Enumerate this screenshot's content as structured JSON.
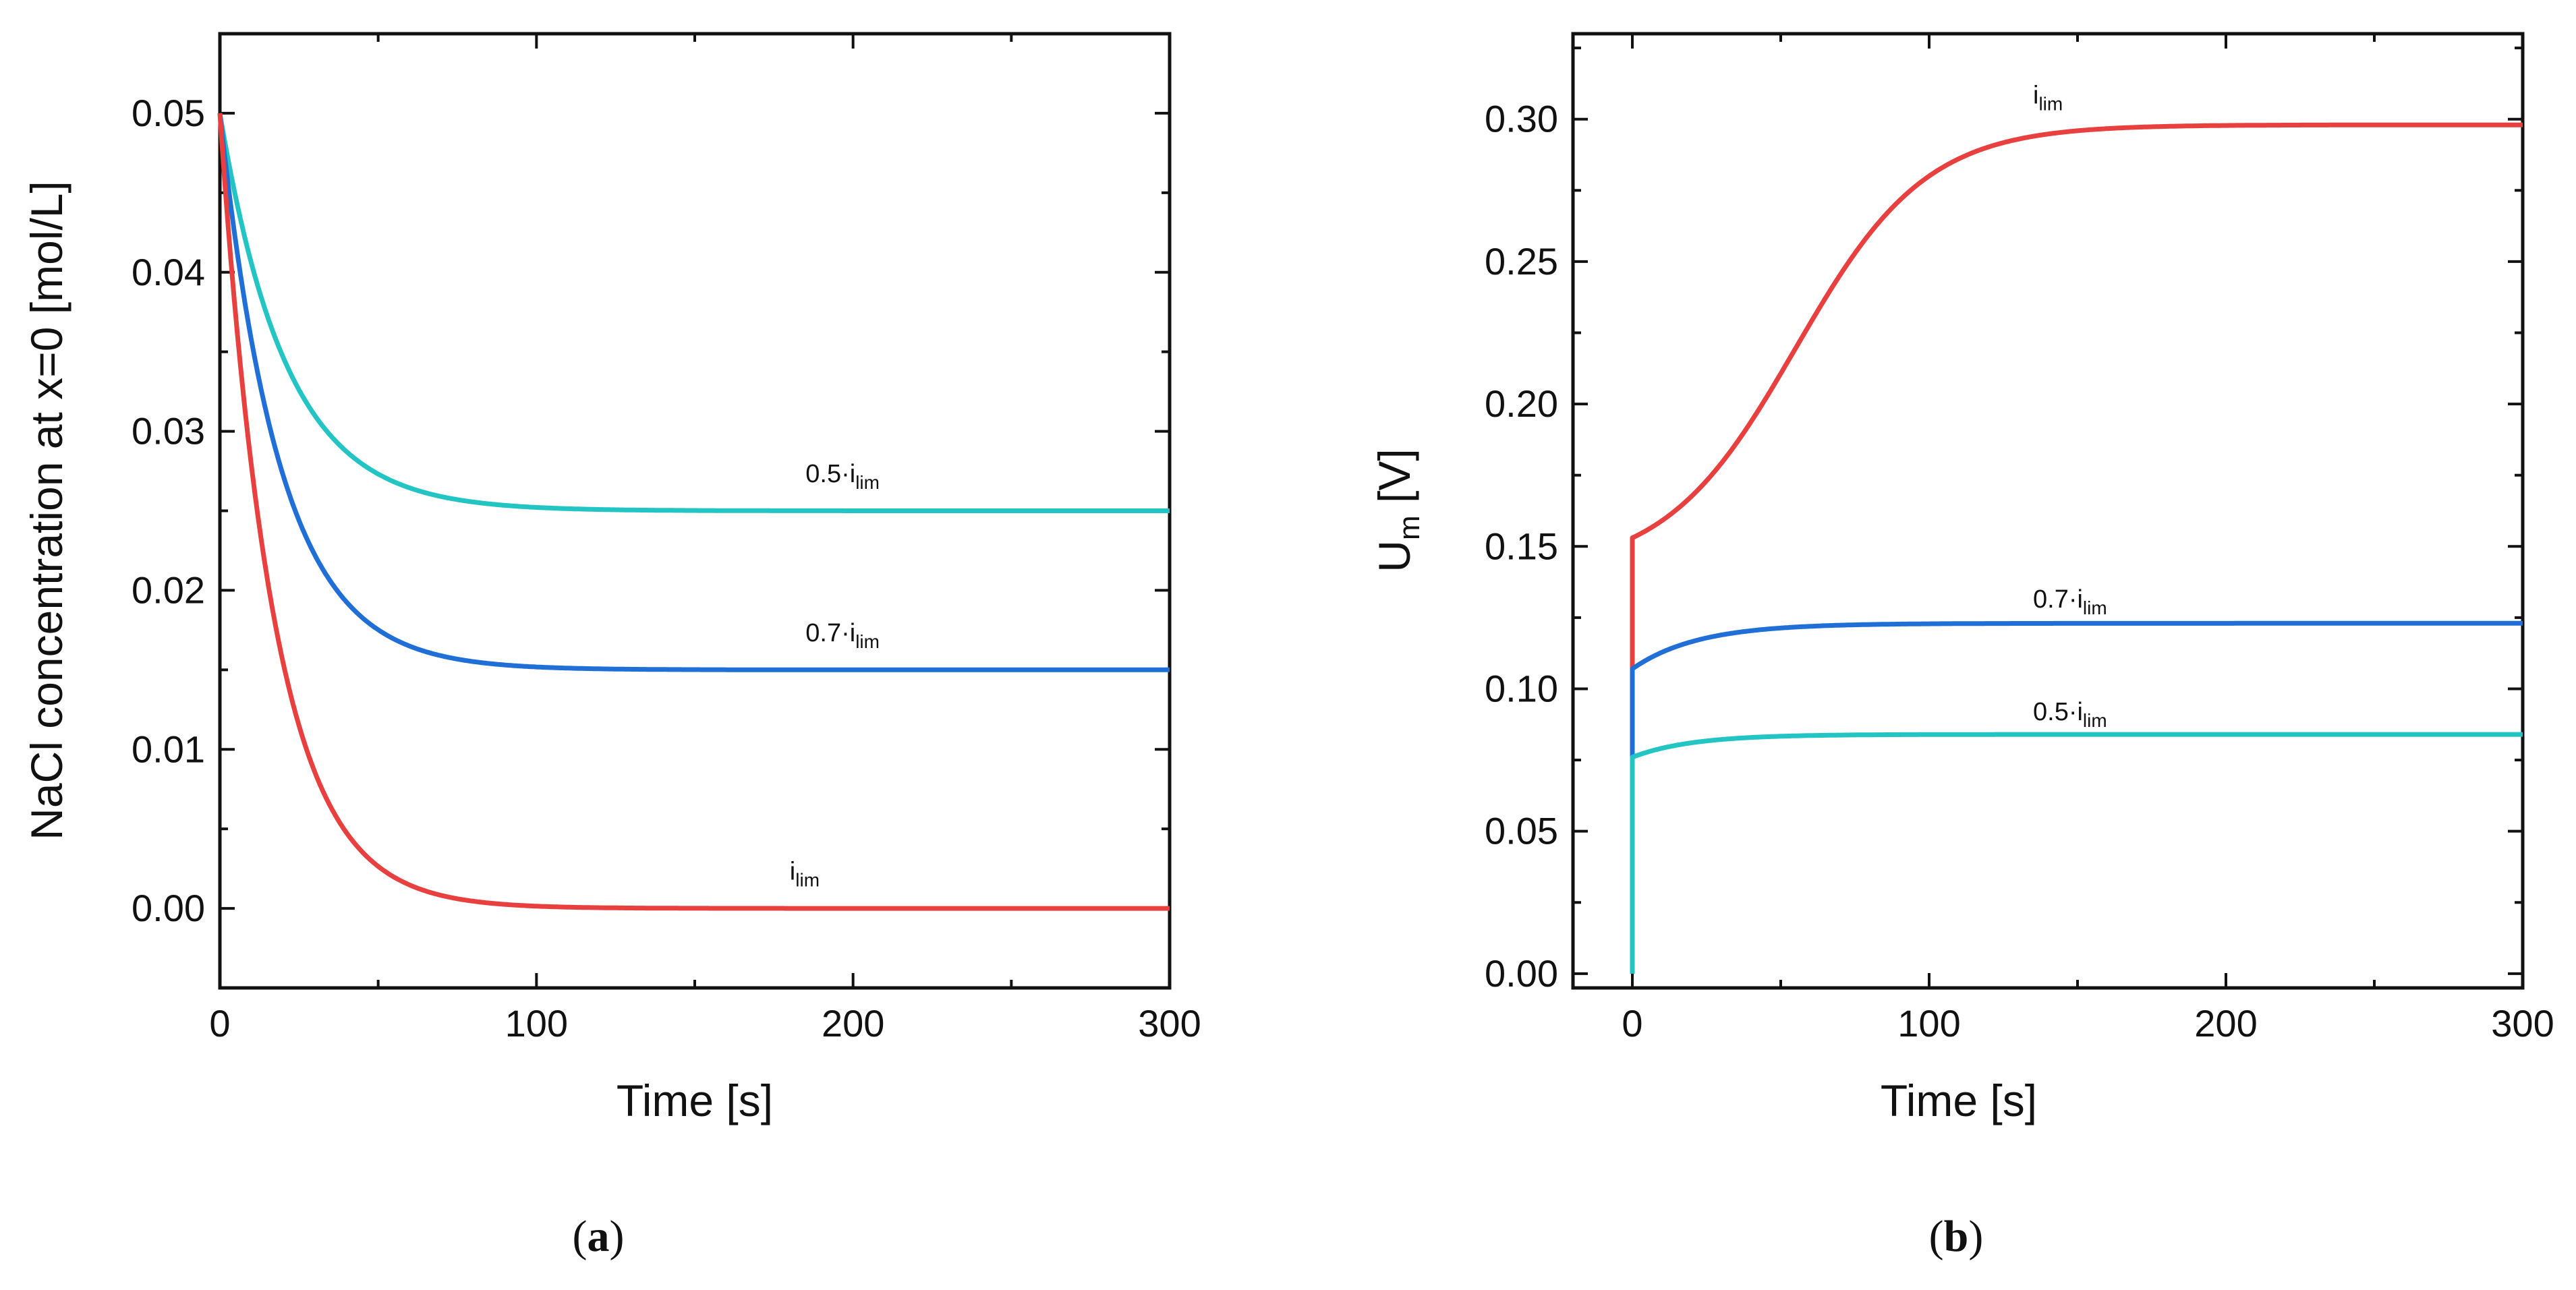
{
  "chart_data": [
    {
      "type": "line",
      "panel": "a",
      "caption": {
        "open": "(",
        "letter": "a",
        "close": ")"
      },
      "xlabel": "Time [s]",
      "ylabel": "NaCl concentration at x=0 [mol/L]",
      "xlim": [
        0,
        300
      ],
      "ylim": [
        -0.005,
        0.055
      ],
      "x_ticks": [
        0,
        100,
        200,
        300
      ],
      "x_tick_labels": [
        "0",
        "100",
        "200",
        "300"
      ],
      "x_minor_ticks": [
        50,
        150,
        250
      ],
      "y_ticks": [
        0.0,
        0.01,
        0.02,
        0.03,
        0.04,
        0.05
      ],
      "y_tick_labels": [
        "0.00",
        "0.01",
        "0.02",
        "0.03",
        "0.04",
        "0.05"
      ],
      "y_minor_ticks": [
        0.005,
        0.015,
        0.025,
        0.035,
        0.045
      ],
      "series": [
        {
          "name": "0.5·i_lim",
          "label": {
            "main": "0.5·i",
            "sub": "lim",
            "at": [
              185,
              0.0268
            ]
          },
          "color": "#22c4c4",
          "model": {
            "kind": "exp_decay",
            "start": 0.05,
            "end": 0.025,
            "tau": 21
          }
        },
        {
          "name": "0.7·i_lim",
          "label": {
            "main": "0.7·i",
            "sub": "lim",
            "at": [
              185,
              0.0168
            ]
          },
          "color": "#1f6fd6",
          "model": {
            "kind": "exp_decay",
            "start": 0.05,
            "end": 0.015,
            "tau": 19
          }
        },
        {
          "name": "i_lim",
          "label": {
            "main": "i",
            "sub": "lim",
            "at": [
              180,
              0.0018
            ]
          },
          "color": "#e8403f",
          "model": {
            "kind": "exp_decay",
            "start": 0.05,
            "end": 0.0,
            "tau": 17
          }
        }
      ]
    },
    {
      "type": "line",
      "panel": "b",
      "caption": {
        "open": "(",
        "letter": "b",
        "close": ")"
      },
      "xlabel": "Time [s]",
      "ylabel": {
        "main": "U",
        "sub": "m",
        "rest": " [V]"
      },
      "xlim": [
        -20,
        300
      ],
      "ylim": [
        -0.005,
        0.33
      ],
      "x_ticks": [
        0,
        100,
        200,
        300
      ],
      "x_tick_labels": [
        "0",
        "100",
        "200",
        "300"
      ],
      "x_minor_ticks": [
        50,
        150,
        250
      ],
      "y_ticks": [
        0.0,
        0.05,
        0.1,
        0.15,
        0.2,
        0.25,
        0.3
      ],
      "y_tick_labels": [
        "0.00",
        "0.05",
        "0.10",
        "0.15",
        "0.20",
        "0.25",
        "0.30"
      ],
      "y_minor_ticks": [
        0.025,
        0.075,
        0.125,
        0.175,
        0.225,
        0.275,
        0.325
      ],
      "series": [
        {
          "name": "i_lim",
          "label": {
            "main": "i",
            "sub": "lim",
            "at": [
              135,
              0.3055
            ]
          },
          "color": "#e8403f",
          "model": {
            "kind": "sigmoid_rise",
            "jump": 0.153,
            "end": 0.298,
            "mid": 55,
            "scale": 22
          }
        },
        {
          "name": "0.7·i_lim",
          "label": {
            "main": "0.7·i",
            "sub": "lim",
            "at": [
              135,
              0.1285
            ]
          },
          "color": "#1f6fd6",
          "model": {
            "kind": "exp_rise",
            "jump": 0.107,
            "end": 0.123,
            "tau": 22
          }
        },
        {
          "name": "0.5·i_lim",
          "label": {
            "main": "0.5·i",
            "sub": "lim",
            "at": [
              135,
              0.089
            ]
          },
          "color": "#22c4c4",
          "model": {
            "kind": "exp_rise",
            "jump": 0.076,
            "end": 0.084,
            "tau": 20
          }
        }
      ]
    }
  ]
}
